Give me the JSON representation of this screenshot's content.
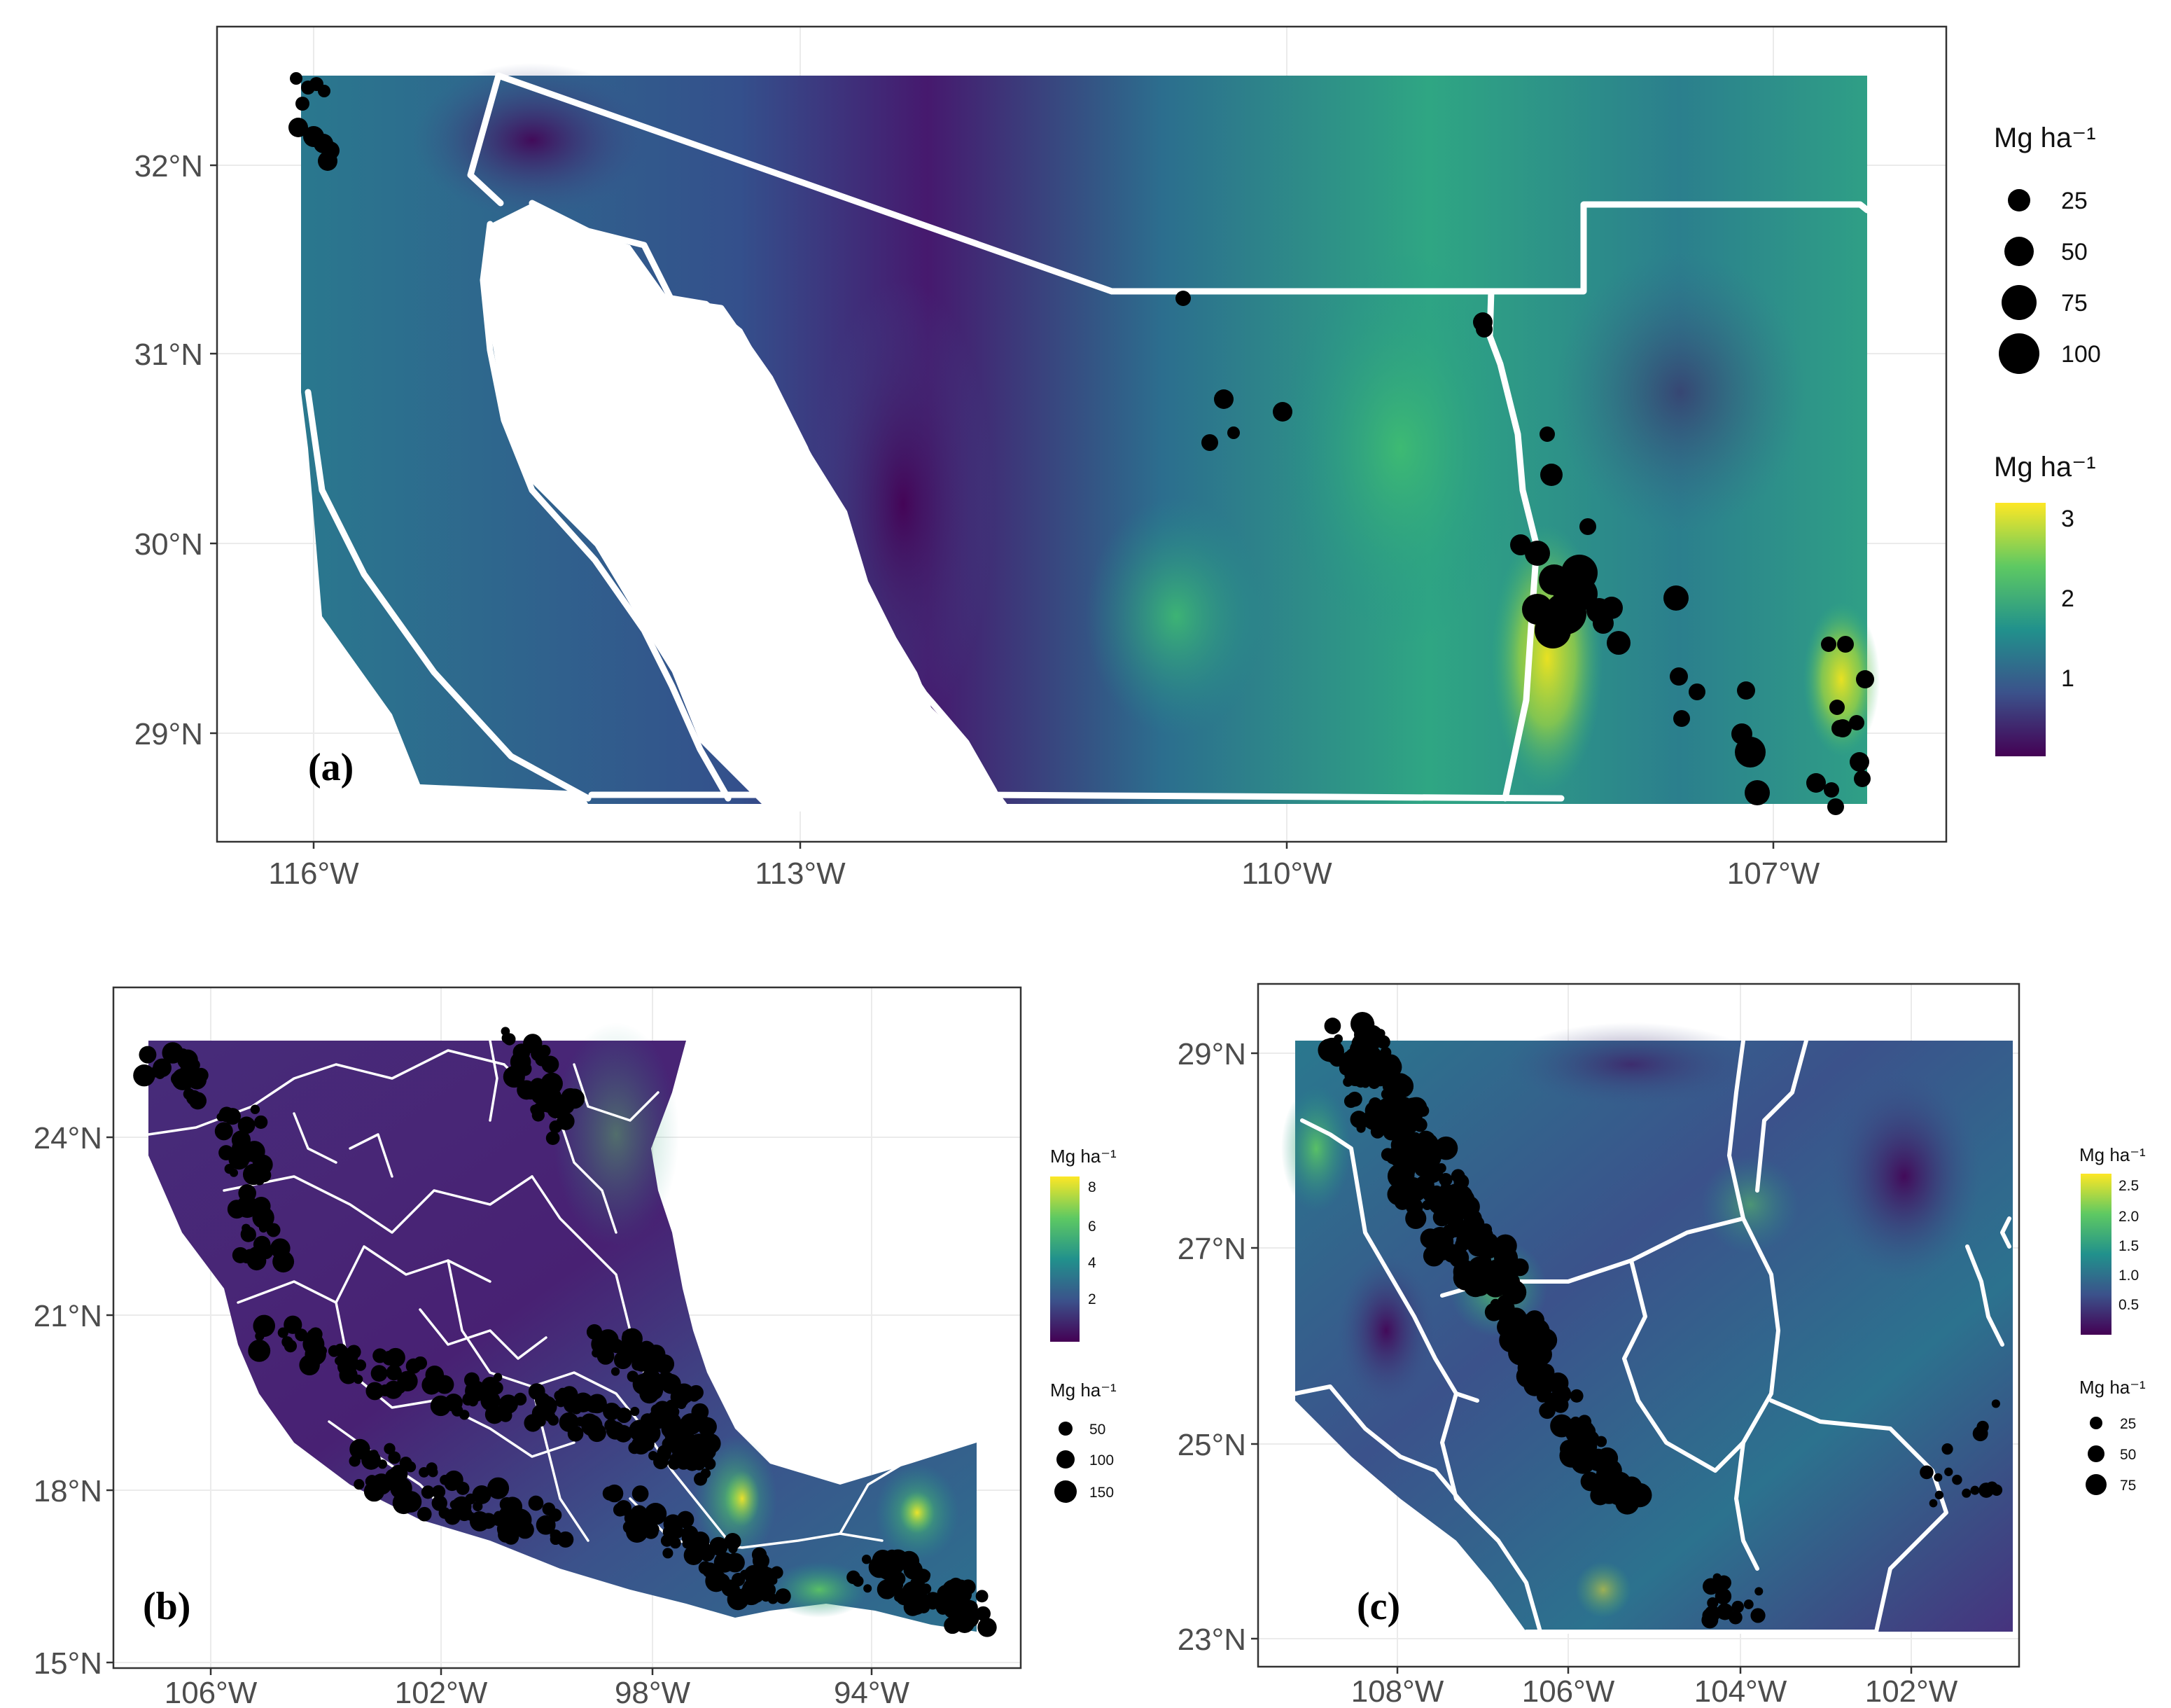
{
  "panels": {
    "a": {
      "label": "(a)",
      "x_ticks": [
        "116°W",
        "113°W",
        "110°W",
        "107°W"
      ],
      "y_ticks": [
        "32°N",
        "31°N",
        "30°N",
        "29°N"
      ],
      "legend_size": {
        "title": "Mg ha⁻¹",
        "labels": [
          "25",
          "50",
          "75",
          "100"
        ]
      },
      "legend_color": {
        "title": "Mg ha⁻¹",
        "labels": [
          "3",
          "2",
          "1"
        ]
      }
    },
    "b": {
      "label": "(b)",
      "x_ticks": [
        "106°W",
        "102°W",
        "98°W",
        "94°W"
      ],
      "y_ticks": [
        "24°N",
        "21°N",
        "18°N",
        "15°N"
      ],
      "legend_color": {
        "title": "Mg ha⁻¹",
        "labels": [
          "8",
          "6",
          "4",
          "2"
        ]
      },
      "legend_size": {
        "title": "Mg ha⁻¹",
        "labels": [
          "50",
          "100",
          "150"
        ]
      }
    },
    "c": {
      "label": "(c)",
      "x_ticks": [
        "108°W",
        "106°W",
        "104°W",
        "102°W"
      ],
      "y_ticks": [
        "29°N",
        "27°N",
        "25°N",
        "23°N"
      ],
      "legend_color": {
        "title": "Mg ha⁻¹",
        "labels": [
          "2.5",
          "2.0",
          "1.5",
          "1.0",
          "0.5"
        ]
      },
      "legend_size": {
        "title": "Mg ha⁻¹",
        "labels": [
          "25",
          "50",
          "75"
        ]
      }
    }
  },
  "colors": {
    "viridis_dark": "#440154",
    "viridis_blue": "#31688e",
    "viridis_teal": "#21918c",
    "viridis_green": "#35b779",
    "viridis_yellow": "#fde725",
    "points": "#000000",
    "borders": "#ffffff"
  }
}
